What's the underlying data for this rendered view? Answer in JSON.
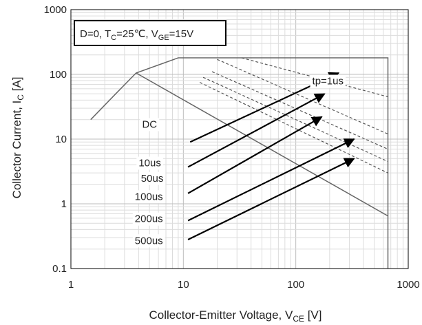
{
  "chart_data": {
    "type": "line",
    "title": "",
    "xlabel": {
      "main": "Collector-Emitter Voltage, V",
      "sub": "CE",
      "unit": " [V]"
    },
    "ylabel": {
      "main": "Collector Current, I",
      "sub": "C",
      "unit": " [A]"
    },
    "x_scale": "log",
    "y_scale": "log",
    "xlim": [
      1,
      1000
    ],
    "ylim": [
      0.1,
      1000
    ],
    "x_ticks": [
      "1",
      "10",
      "100",
      "1000"
    ],
    "y_ticks": [
      "0.1",
      "1",
      "10",
      "100",
      "1000"
    ],
    "grid": true,
    "conditions": {
      "d": "D=0, T",
      "tc_sub": "C",
      "tc_val": "=25℃, V",
      "vge_sub": "GE",
      "vge_val": "=15V"
    },
    "series": [
      {
        "name": "DC",
        "style": "solid",
        "x": [
          1.5,
          2.5,
          3.8,
          9,
          660,
          660
        ],
        "y": [
          20,
          50,
          105,
          180,
          180,
          0.1
        ]
      },
      {
        "name": "DC",
        "style": "solid",
        "x": [
          3.8,
          660
        ],
        "y": [
          105,
          0.65
        ]
      },
      {
        "name": "tp=1us",
        "style": "dashed",
        "x": [
          33,
          660
        ],
        "y": [
          180,
          45
        ]
      },
      {
        "name": "10us",
        "style": "dashed",
        "x": [
          20,
          660
        ],
        "y": [
          170,
          12
        ]
      },
      {
        "name": "50us",
        "style": "dashed",
        "x": [
          18,
          660
        ],
        "y": [
          110,
          7
        ]
      },
      {
        "name": "100us",
        "style": "dashed",
        "x": [
          15,
          660
        ],
        "y": [
          90,
          4.5
        ]
      },
      {
        "name": "200us",
        "style": "dashed",
        "x": [
          14,
          660
        ],
        "y": [
          75,
          3
        ]
      }
    ],
    "annotations": [
      {
        "text": "tp=1us",
        "x": 140,
        "y": 70,
        "arrow_to": null
      },
      {
        "text": "DC",
        "x": 4.3,
        "y": 15,
        "arrow_to": null
      },
      {
        "text": "10us",
        "x": 4.0,
        "y": 3.8,
        "arrow_from": [
          11.5,
          9
        ],
        "arrow_to": [
          240,
          105
        ]
      },
      {
        "text": "50us",
        "x": 4.2,
        "y": 2.2,
        "arrow_from": [
          11,
          3.7
        ],
        "arrow_to": [
          180,
          50
        ]
      },
      {
        "text": "100us",
        "x": 3.7,
        "y": 1.15,
        "arrow_from": [
          11,
          1.45
        ],
        "arrow_to": [
          170,
          22
        ]
      },
      {
        "text": "200us",
        "x": 3.7,
        "y": 0.52,
        "arrow_from": [
          11,
          0.55
        ],
        "arrow_to": [
          330,
          10
        ]
      },
      {
        "text": "500us",
        "x": 3.7,
        "y": 0.24,
        "arrow_from": [
          11,
          0.28
        ],
        "arrow_to": [
          330,
          5
        ]
      }
    ]
  }
}
